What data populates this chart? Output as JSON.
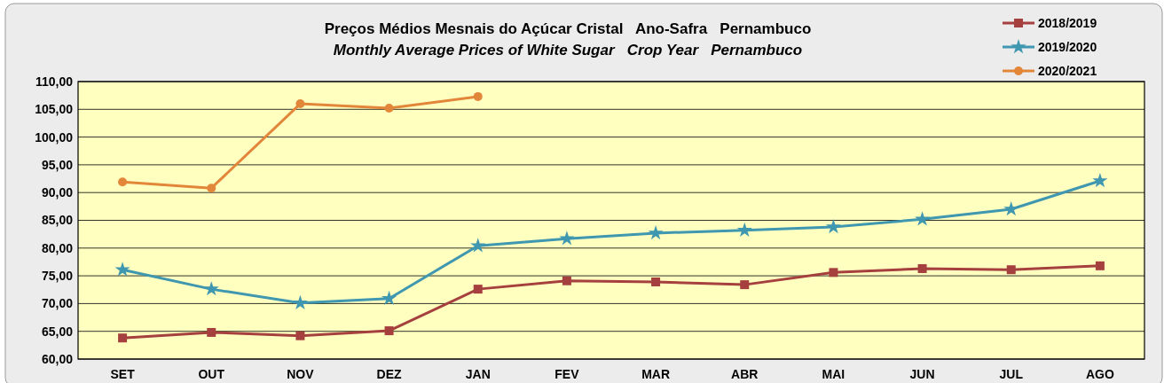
{
  "chart_data": {
    "type": "line",
    "title": "Preços Médios Mesnais do Açúcar Cristal   Ano-Safra   Pernambuco",
    "subtitle": "Monthly Average Prices of White Sugar   Crop Year   Pernambuco",
    "categories": [
      "SET",
      "OUT",
      "NOV",
      "DEZ",
      "JAN",
      "FEV",
      "MAR",
      "ABR",
      "MAI",
      "JUN",
      "JUL",
      "AGO"
    ],
    "ylim": [
      60,
      110
    ],
    "yticks": [
      {
        "value": 60,
        "label": "60,00"
      },
      {
        "value": 65,
        "label": "65,00"
      },
      {
        "value": 70,
        "label": "70,00"
      },
      {
        "value": 75,
        "label": "75,00"
      },
      {
        "value": 80,
        "label": "80,00"
      },
      {
        "value": 85,
        "label": "85,00"
      },
      {
        "value": 90,
        "label": "90,00"
      },
      {
        "value": 95,
        "label": "95,00"
      },
      {
        "value": 100,
        "label": "100,00"
      },
      {
        "value": 105,
        "label": "105,00"
      },
      {
        "value": 110,
        "label": "110,00"
      }
    ],
    "grid": "y",
    "legend": "top right",
    "series": [
      {
        "name": "2018/2019",
        "color": "#a5403f",
        "marker": "square",
        "values": [
          63.8,
          64.8,
          64.2,
          65.1,
          72.6,
          74.1,
          73.9,
          73.4,
          75.6,
          76.3,
          76.1,
          76.8
        ]
      },
      {
        "name": "2019/2020",
        "color": "#3f97b0",
        "marker": "star",
        "values": [
          76.1,
          72.6,
          70.1,
          70.9,
          80.4,
          81.7,
          82.7,
          83.2,
          83.8,
          85.2,
          87.0,
          92.1
        ]
      },
      {
        "name": "2020/2021",
        "color": "#e2873a",
        "marker": "circle",
        "values": [
          91.9,
          90.8,
          106.0,
          105.2,
          107.3,
          null,
          null,
          null,
          null,
          null,
          null,
          null
        ]
      }
    ]
  }
}
